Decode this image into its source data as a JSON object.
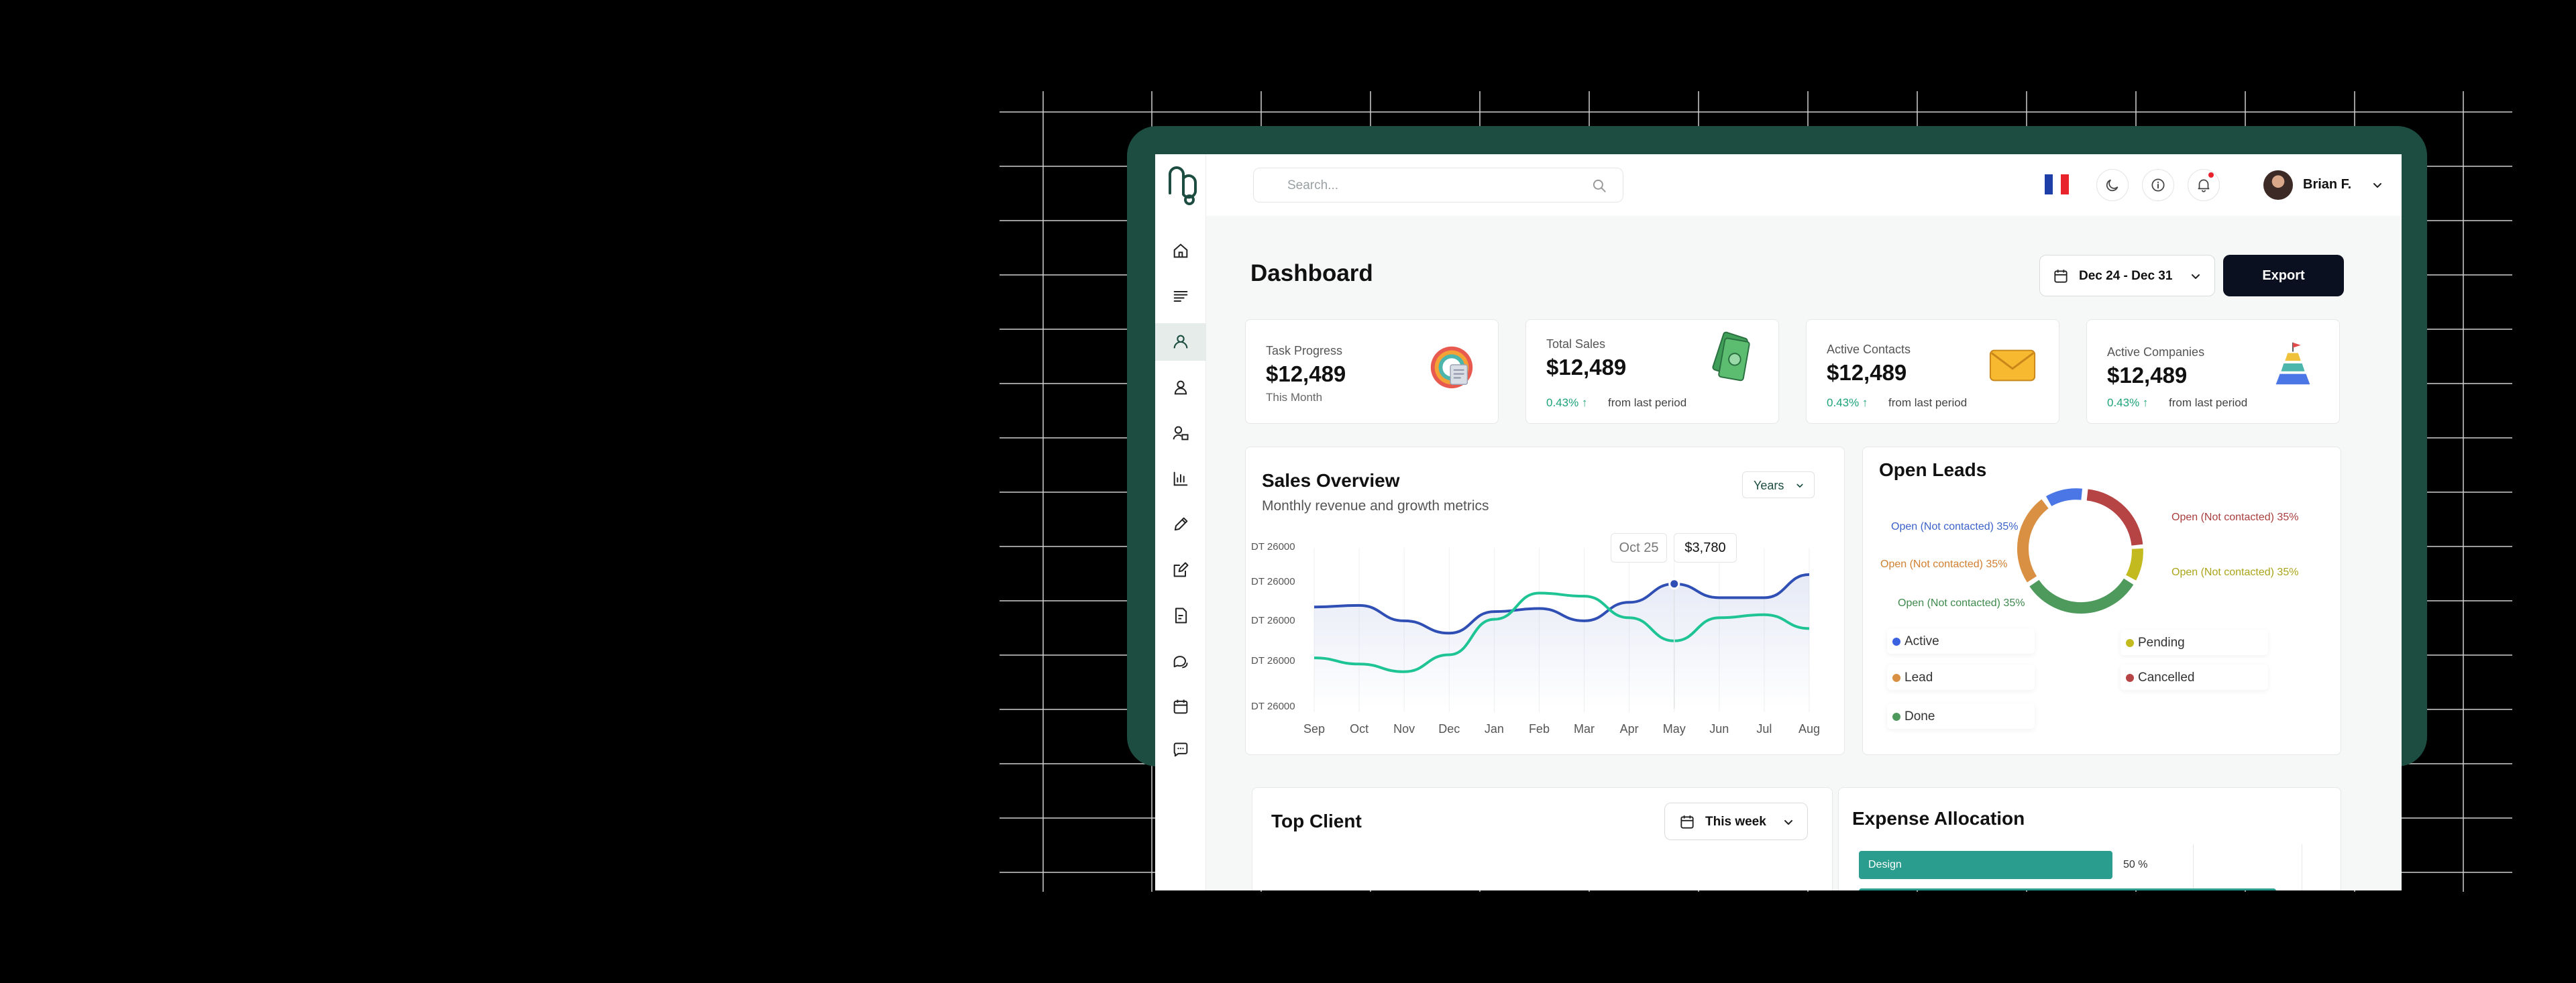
{
  "search": {
    "placeholder": "Search..."
  },
  "user": {
    "name": "Brian F."
  },
  "page": {
    "title": "Dashboard"
  },
  "date_range": {
    "label": "Dec 24 - Dec 31"
  },
  "export": {
    "label": "Export"
  },
  "stats": [
    {
      "label": "Task Progress",
      "value": "$12,489",
      "sub": "This Month"
    },
    {
      "label": "Total Sales",
      "value": "$12,489",
      "change": "0.43% ↑",
      "period": "from last period"
    },
    {
      "label": "Active Contacts",
      "value": "$12,489",
      "change": "0.43% ↑",
      "period": "from last period"
    },
    {
      "label": "Active Companies",
      "value": "$12,489",
      "change": "0.43% ↑",
      "period": "from last period"
    }
  ],
  "sales_overview": {
    "title": "Sales Overview",
    "subtitle": "Monthly revenue and growth metrics",
    "filter": "Years",
    "tooltip_date": "Oct 25",
    "tooltip_value": "$3,780"
  },
  "open_leads": {
    "title": "Open Leads",
    "slice_labels": [
      "Open (Not contacted) 35%",
      "Open (Not contacted) 35%",
      "Open (Not contacted) 35%",
      "Open (Not contacted) 35%",
      "Open (Not contacted) 35%"
    ],
    "legend": [
      "Active",
      "Pending",
      "Lead",
      "Cancelled",
      "Done"
    ]
  },
  "top_client": {
    "title": "Top Client",
    "filter": "This week"
  },
  "expense_allocation": {
    "title": "Expense Allocation",
    "items": [
      {
        "name": "Design",
        "percent_label": "50 %",
        "value": 50
      }
    ]
  },
  "colors": {
    "brand_green": "#1c4d40",
    "accent_teal": "#2a9d8f",
    "line_blue": "#2f4fb5",
    "line_green": "#1fc494",
    "positive": "#1ea37a",
    "donut_blue": "#4a76e6",
    "donut_red": "#b64444",
    "donut_olive": "#c2ba1f",
    "donut_green": "#4e9a5c",
    "donut_orange": "#d99043"
  },
  "chart_data": {
    "type": "line",
    "categories": [
      "Sep",
      "Oct",
      "Nov",
      "Dec",
      "Jan",
      "Feb",
      "Mar",
      "Apr",
      "May",
      "Jun",
      "Jul",
      "Aug"
    ],
    "y_tick_labels": [
      "DT 26000",
      "DT 26000",
      "DT 26000",
      "DT 26000",
      "DT 26000"
    ],
    "ylim": [
      0,
      100
    ],
    "series": [
      {
        "values": [
          66,
          67,
          57,
          49,
          63,
          65,
          57,
          69,
          81,
          72,
          72,
          87
        ]
      },
      {
        "values": [
          33,
          29,
          24,
          35,
          58,
          75,
          73,
          59,
          44,
          59,
          61,
          52
        ]
      }
    ],
    "highlight": {
      "series": 0,
      "index": 8
    },
    "grid": true
  }
}
